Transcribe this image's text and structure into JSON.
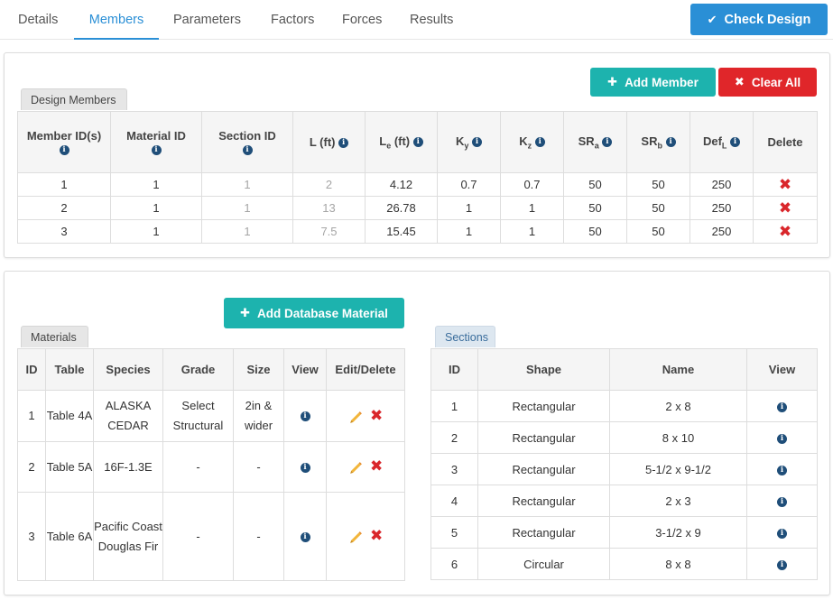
{
  "tabs": [
    "Details",
    "Members",
    "Parameters",
    "Factors",
    "Forces",
    "Results"
  ],
  "active_tab": "Members",
  "check_design_label": "Check Design",
  "add_member_label": "Add Member",
  "clear_all_label": "Clear All",
  "design_members_label": "Design Members",
  "members": {
    "headers": [
      "Member ID(s)",
      "Material ID",
      "Section ID",
      "L (ft)",
      "Le (ft)",
      "Ky",
      "Kz",
      "SRa",
      "SRb",
      "DefL",
      "Delete"
    ],
    "rows": [
      [
        "1",
        "1",
        "1",
        "2",
        "4.12",
        "0.7",
        "0.7",
        "50",
        "50",
        "250"
      ],
      [
        "2",
        "1",
        "1",
        "13",
        "26.78",
        "1",
        "1",
        "50",
        "50",
        "250"
      ],
      [
        "3",
        "1",
        "1",
        "7.5",
        "15.45",
        "1",
        "1",
        "50",
        "50",
        "250"
      ]
    ]
  },
  "add_db_material_label": "Add Database Material",
  "materials_label": "Materials",
  "materials": {
    "headers": [
      "ID",
      "Table",
      "Species",
      "Grade",
      "Size",
      "View",
      "Edit/Delete"
    ],
    "rows": [
      [
        "1",
        "Table 4A",
        "ALASKA CEDAR",
        "Select Structural",
        "2in & wider"
      ],
      [
        "2",
        "Table 5A",
        "16F-1.3E",
        "-",
        "-"
      ],
      [
        "3",
        "Table 6A",
        "Pacific Coast Douglas Fir",
        "-",
        "-"
      ]
    ]
  },
  "sections_label": "Sections",
  "sections": {
    "headers": [
      "ID",
      "Shape",
      "Name",
      "View"
    ],
    "rows": [
      [
        "1",
        "Rectangular",
        "2 x 8"
      ],
      [
        "2",
        "Rectangular",
        "8 x 10"
      ],
      [
        "3",
        "Rectangular",
        "5-1/2 x 9-1/2"
      ],
      [
        "4",
        "Rectangular",
        "2 x 3"
      ],
      [
        "5",
        "Rectangular",
        "3-1/2 x 9"
      ],
      [
        "6",
        "Circular",
        "8 x 8"
      ]
    ]
  },
  "colors": {
    "primary_blue": "#2a8fd6",
    "teal": "#1db3ae",
    "danger_red": "#e0262a",
    "info_icon": "#1f4e79",
    "pencil_yellow": "#f2b53a"
  }
}
